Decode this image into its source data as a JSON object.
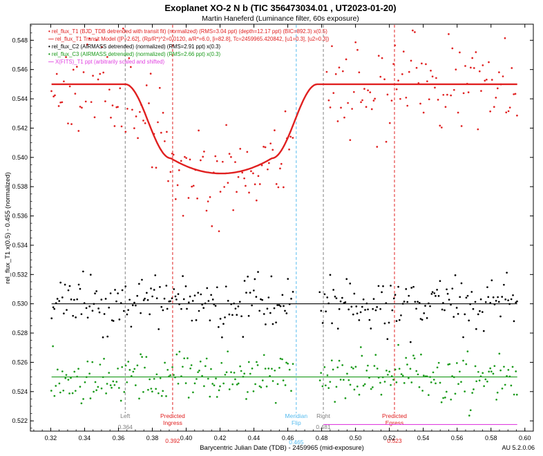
{
  "chart_data": {
    "type": "scatter",
    "title": "Exoplanet XO-2 N b (TIC 356473034.01 , UT2023-01-20)",
    "subtitle": "Martin Haneferd (Luminance filter, 60s exposure)",
    "xlabel": "Barycentric Julian Date (TDB) - 2459965 (mid-exposure)",
    "ylabel": "rel_flux_T1 x(0.5) - 0.455 (normalized)",
    "version_label": "AU 5.2.0.06",
    "xlim": [
      0.308,
      0.605
    ],
    "ylim": [
      0.5213,
      0.5491
    ],
    "x_ticks": [
      "0.32",
      "0.34",
      "0.36",
      "0.38",
      "0.40",
      "0.42",
      "0.44",
      "0.46",
      "0.48",
      "0.50",
      "0.52",
      "0.54",
      "0.56",
      "0.58",
      "0.60"
    ],
    "y_ticks": [
      "0.522",
      "0.524",
      "0.526",
      "0.528",
      "0.530",
      "0.532",
      "0.534",
      "0.536",
      "0.538",
      "0.540",
      "0.542",
      "0.544",
      "0.546",
      "0.548"
    ],
    "grid": false,
    "legend_position": "top-left",
    "legend": [
      {
        "marker": "•",
        "label": "rel_flux_T1 (BJD_TDB detrended with transit fit) (normalized) (RMS=3.04 ppt) (depth=12.17 ppt) (BIC=892.3) x(0.5)",
        "color": "#e02020"
      },
      {
        "marker": "—",
        "label": "rel_flux_T1 Transit Model ([P=2.62], (Rp/R*)^2=0.0120, a/R*=6.0, [i=82.8], Tc=2459965.420842, [u1=0.3], [u2=0.3])",
        "color": "#e02020"
      },
      {
        "marker": "•",
        "label": "rel_flux_C2 (AIRMASS detrended) (normalized) (RMS=2.91 ppt) x(0.3)",
        "color": "#000000"
      },
      {
        "marker": "•",
        "label": "rel_flux_C3 (AIRMASS detrended) (normalized) (RMS=2.66 ppt) x(0.3)",
        "color": "#1a9a1a"
      },
      {
        "marker": "—",
        "label": "X(FITS)_T1 ppt (arbitrarily scaled and shifted)",
        "color": "#e040e0"
      }
    ],
    "markers": [
      {
        "x": 0.364,
        "lines": [
          "Left"
        ],
        "value_label": "0.364",
        "color": "#808080",
        "dash": true
      },
      {
        "x": 0.392,
        "lines": [
          "Predicted",
          "Ingress"
        ],
        "value_label": "0.392",
        "color": "#e02020",
        "dash": true
      },
      {
        "x": 0.465,
        "lines": [
          "Meridian",
          "Flip"
        ],
        "value_label": "0.465",
        "color": "#55bbee",
        "dash": true
      },
      {
        "x": 0.481,
        "lines": [
          "Right"
        ],
        "value_label": "0.481",
        "color": "#808080",
        "dash": true
      },
      {
        "x": 0.523,
        "lines": [
          "Predicted",
          "Egress"
        ],
        "value_label": "0.523",
        "color": "#e02020",
        "dash": true
      }
    ],
    "series": [
      {
        "name": "rel_flux_T1",
        "kind": "scatter",
        "color": "#e02020",
        "x_start": 0.3205,
        "x_end": 0.5955,
        "n": 260,
        "gap_from": 0.463,
        "gap_to": 0.482,
        "model": "transit",
        "scatter_sd": 0.0017,
        "seed": 11
      },
      {
        "name": "rel_flux_T1 Transit Model",
        "kind": "model",
        "color": "#e02020",
        "x_start": 0.3205,
        "x_end": 0.5955,
        "baseline": 0.545,
        "depth": 0.0061,
        "t1": 0.364,
        "t2": 0.391,
        "t3": 0.4505,
        "t4": 0.4775
      },
      {
        "name": "rel_flux_C2",
        "kind": "scatter",
        "color": "#000000",
        "x_start": 0.3205,
        "x_end": 0.5955,
        "n": 310,
        "gap_from": 0.463,
        "gap_to": 0.4785,
        "baseline": 0.53,
        "scatter_sd": 0.0009,
        "seed": 23
      },
      {
        "name": "rel_flux_C2 baseline",
        "kind": "line",
        "color": "#000000",
        "x_start": 0.3205,
        "x_end": 0.5955,
        "y": 0.53
      },
      {
        "name": "rel_flux_C3",
        "kind": "scatter",
        "color": "#1a9a1a",
        "x_start": 0.3205,
        "x_end": 0.5955,
        "n": 310,
        "gap_from": 0.463,
        "gap_to": 0.4785,
        "baseline": 0.525,
        "scatter_sd": 0.00085,
        "seed": 37
      },
      {
        "name": "rel_flux_C3 baseline",
        "kind": "line",
        "color": "#1a9a1a",
        "x_start": 0.3205,
        "x_end": 0.5955,
        "y": 0.525
      },
      {
        "name": "X(FITS)_T1",
        "kind": "line",
        "color": "#e040e0",
        "x_start": 0.481,
        "x_end": 0.5955,
        "y": 0.52175
      }
    ]
  }
}
